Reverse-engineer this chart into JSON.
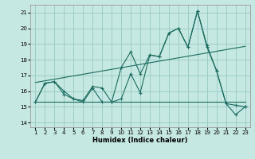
{
  "xlabel": "Humidex (Indice chaleur)",
  "xlim": [
    0.5,
    23.5
  ],
  "ylim": [
    13.7,
    21.5
  ],
  "yticks": [
    14,
    15,
    16,
    17,
    18,
    19,
    20,
    21
  ],
  "xticks": [
    1,
    2,
    3,
    4,
    5,
    6,
    7,
    8,
    9,
    10,
    11,
    12,
    13,
    14,
    15,
    16,
    17,
    18,
    19,
    20,
    21,
    22,
    23
  ],
  "background_color": "#c6e8e3",
  "grid_color": "#9dcdc6",
  "line_color": "#1a6b5e",
  "line1_x": [
    1,
    2,
    3,
    4,
    5,
    6,
    7,
    8,
    9,
    10,
    11,
    12,
    13,
    14,
    15,
    16,
    17,
    18,
    19,
    20,
    21,
    22,
    23
  ],
  "line1_y": [
    15.3,
    16.5,
    16.6,
    16.0,
    15.5,
    15.3,
    16.2,
    15.3,
    15.3,
    15.5,
    17.1,
    15.9,
    18.3,
    18.2,
    19.7,
    20.0,
    18.8,
    21.1,
    18.8,
    17.3,
    15.2,
    14.5,
    15.0
  ],
  "line2_x": [
    1,
    2,
    3,
    4,
    5,
    6,
    7,
    8,
    9,
    10,
    11,
    12,
    13,
    14,
    15,
    16,
    17,
    18,
    19,
    20,
    21,
    22,
    23
  ],
  "line2_y": [
    15.3,
    16.5,
    16.6,
    15.8,
    15.5,
    15.4,
    16.3,
    16.2,
    15.3,
    17.5,
    18.5,
    17.1,
    18.3,
    18.2,
    19.7,
    20.0,
    18.8,
    21.1,
    18.9,
    17.3,
    15.2,
    15.1,
    15.0
  ],
  "trend1_x": [
    1,
    23
  ],
  "trend1_y": [
    15.3,
    15.3
  ],
  "trend2_x": [
    1,
    23
  ],
  "trend2_y": [
    16.55,
    18.85
  ]
}
